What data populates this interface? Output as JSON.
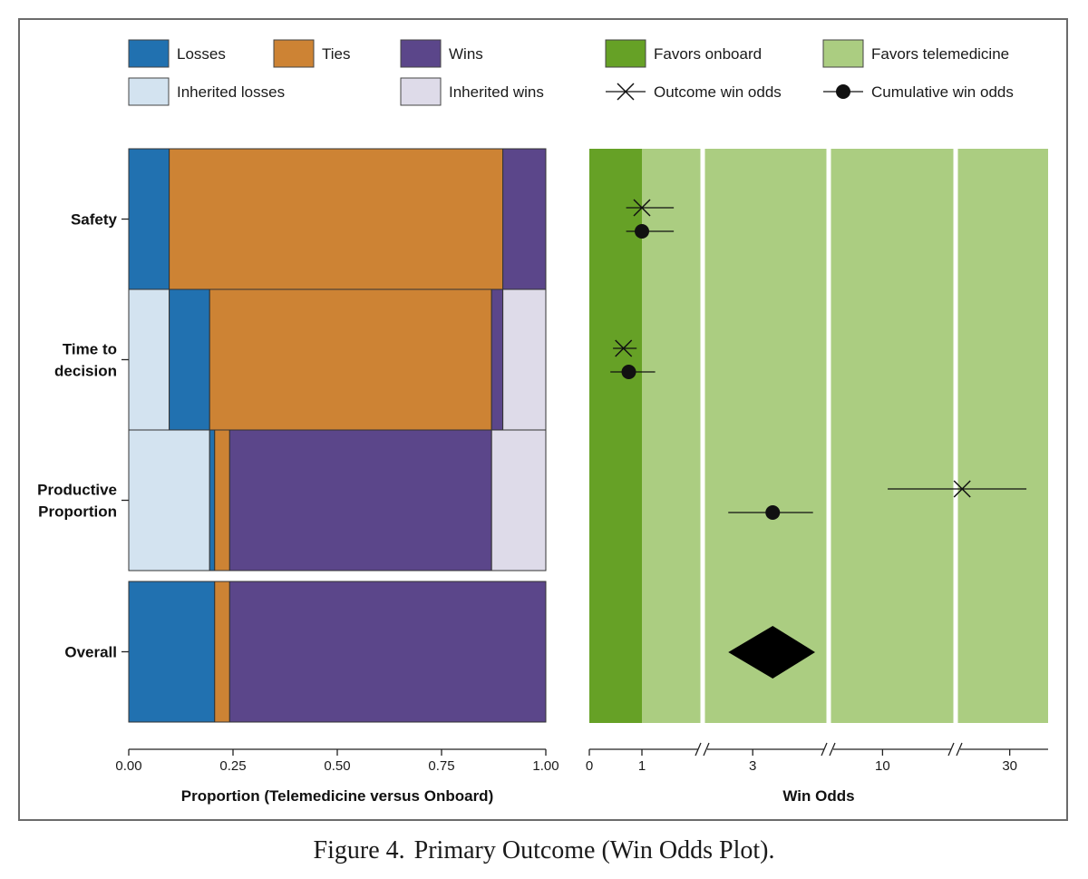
{
  "legend": [
    {
      "key": "losses",
      "label": "Losses",
      "type": "box",
      "color": "#2171b0"
    },
    {
      "key": "ties",
      "label": "Ties",
      "type": "box",
      "color": "#cd8334"
    },
    {
      "key": "wins",
      "label": "Wins",
      "type": "box",
      "color": "#5b468a"
    },
    {
      "key": "favors_onboard",
      "label": "Favors onboard",
      "type": "box",
      "color": "#66a126"
    },
    {
      "key": "favors_telemedicine",
      "label": "Favors telemedicine",
      "type": "box",
      "color": "#abcd81"
    },
    {
      "key": "inherited_losses",
      "label": "Inherited losses",
      "type": "box",
      "color": "#d3e3f0"
    },
    {
      "key": "inherited_wins",
      "label": "Inherited wins",
      "type": "box",
      "color": "#dedbe9"
    },
    {
      "key": "outcome_win_odds",
      "label": "Outcome win odds",
      "type": "cross",
      "color": "#111111"
    },
    {
      "key": "cumulative_win_odds",
      "label": "Cumulative win odds",
      "type": "dot",
      "color": "#111111"
    }
  ],
  "chart_data": [
    {
      "type": "bar",
      "subtype": "horizontal-stacked-proportion",
      "title": "",
      "xlabel": "Proportion (Telemedicine versus Onboard)",
      "xlim": [
        0,
        1
      ],
      "xticks": [
        "0.00",
        "0.25",
        "0.50",
        "0.75",
        "1.00"
      ],
      "categories": [
        "Safety",
        "Time to decision",
        "Productive Proportion",
        "Overall"
      ],
      "segment_colors": {
        "inherited_losses": "#d3e3f0",
        "losses": "#2171b0",
        "ties": "#cd8334",
        "wins": "#5b468a",
        "inherited_wins": "#dedbe9"
      },
      "rows": [
        {
          "category": "Safety",
          "segments": [
            {
              "kind": "losses",
              "value": 0.097
            },
            {
              "kind": "ties",
              "value": 0.8
            },
            {
              "kind": "wins",
              "value": 0.103
            }
          ]
        },
        {
          "category": "Time to decision",
          "segments": [
            {
              "kind": "inherited_losses",
              "value": 0.097
            },
            {
              "kind": "losses",
              "value": 0.097
            },
            {
              "kind": "ties",
              "value": 0.676
            },
            {
              "kind": "wins",
              "value": 0.027
            },
            {
              "kind": "inherited_wins",
              "value": 0.103
            }
          ]
        },
        {
          "category": "Productive Proportion",
          "segments": [
            {
              "kind": "inherited_losses",
              "value": 0.194
            },
            {
              "kind": "losses",
              "value": 0.012
            },
            {
              "kind": "ties",
              "value": 0.036
            },
            {
              "kind": "wins",
              "value": 0.628
            },
            {
              "kind": "inherited_wins",
              "value": 0.13
            }
          ]
        },
        {
          "category": "Overall",
          "segments": [
            {
              "kind": "losses",
              "value": 0.206
            },
            {
              "kind": "ties",
              "value": 0.036
            },
            {
              "kind": "wins",
              "value": 0.758
            }
          ]
        }
      ]
    },
    {
      "type": "scatter",
      "subtype": "forest-plot",
      "title": "",
      "xlabel": "Win Odds",
      "xticks": [
        "0",
        "1",
        "3",
        "10",
        "30"
      ],
      "xaxis_breaks": true,
      "regions": [
        {
          "label": "Favors onboard",
          "from": 0,
          "to": 1,
          "color": "#66a126"
        },
        {
          "label": "Favors telemedicine",
          "from": 1,
          "to": 40,
          "color": "#abcd81"
        }
      ],
      "rows": [
        {
          "category": "Safety",
          "outcome": {
            "estimate": 1.0,
            "lower": 0.7,
            "upper": 1.4
          },
          "cumulative": {
            "estimate": 1.0,
            "lower": 0.7,
            "upper": 1.4
          }
        },
        {
          "category": "Time to decision",
          "outcome": {
            "estimate": 0.65,
            "lower": 0.45,
            "upper": 0.9
          },
          "cumulative": {
            "estimate": 0.75,
            "lower": 0.4,
            "upper": 1.15
          }
        },
        {
          "category": "Productive Proportion",
          "outcome": {
            "estimate": 21,
            "lower": 10.5,
            "upper": 34
          },
          "cumulative": {
            "estimate": 3.6,
            "lower": 2.4,
            "upper": 5.2
          }
        },
        {
          "category": "Overall",
          "cumulative_diamond": {
            "estimate": 3.6,
            "lower": 2.4,
            "upper": 5.3
          }
        }
      ]
    }
  ],
  "caption": {
    "label": "Figure 4.",
    "text": "Primary Outcome (Win Odds Plot)."
  }
}
